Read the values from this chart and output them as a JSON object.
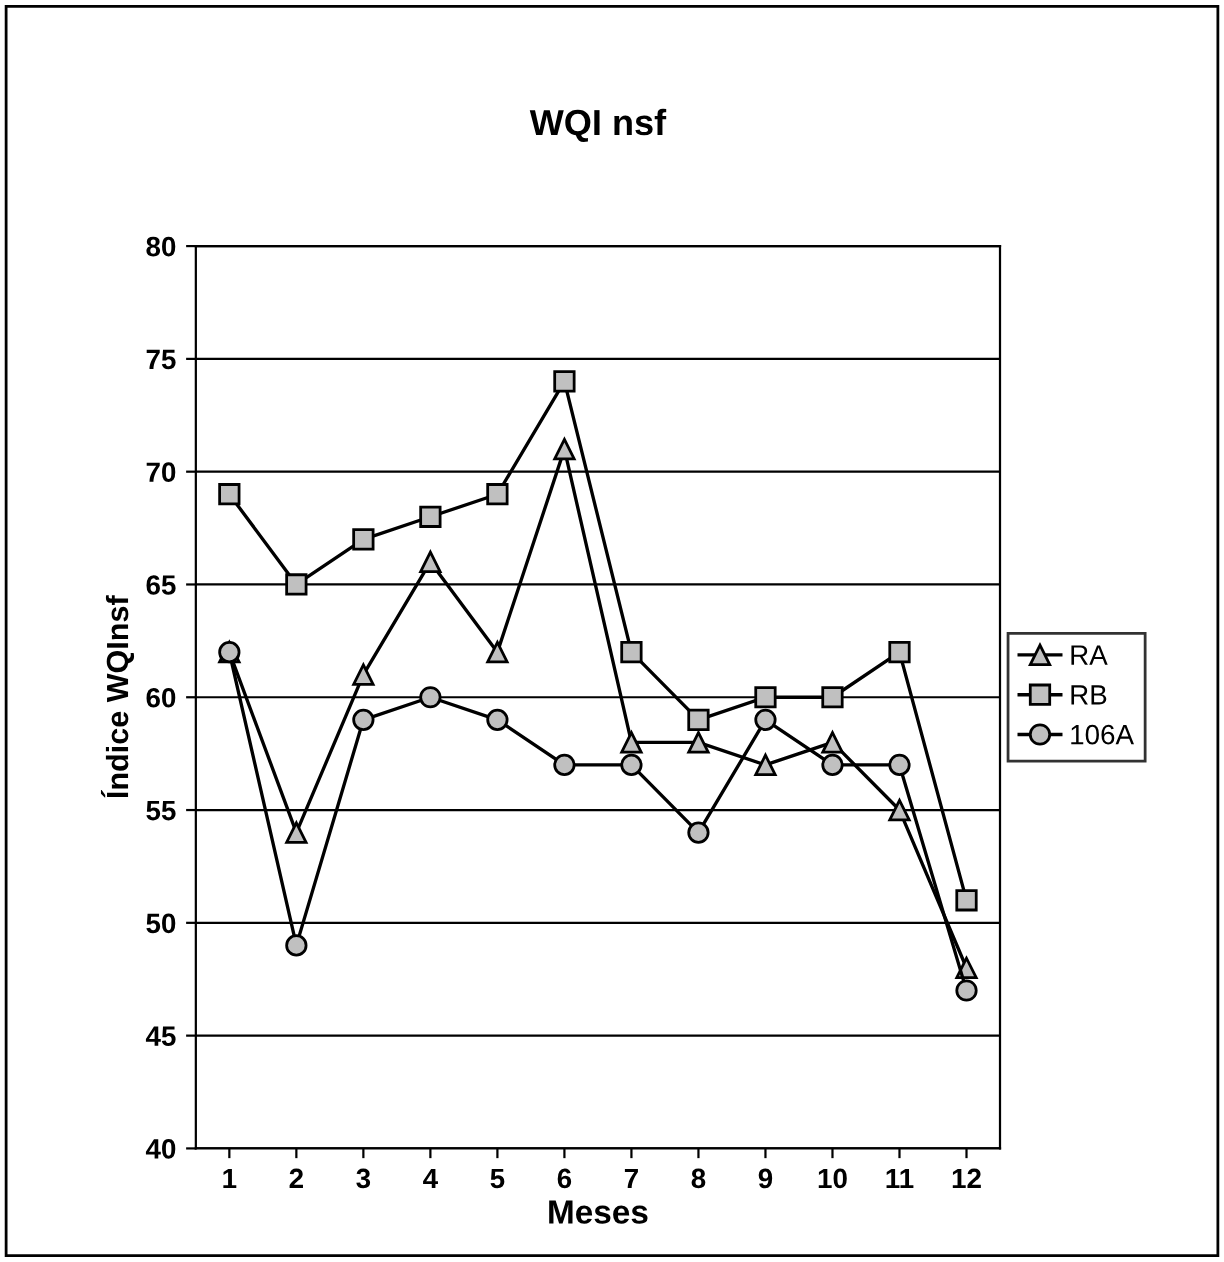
{
  "chart_data": {
    "type": "line",
    "title": "WQI nsf",
    "xlabel": "Meses",
    "ylabel": "Índice WQInsf",
    "categories": [
      "1",
      "2",
      "3",
      "4",
      "5",
      "6",
      "7",
      "8",
      "9",
      "10",
      "11",
      "12"
    ],
    "series": [
      {
        "name": "RA",
        "color": "#000000",
        "marker": "triangle",
        "values": [
          62,
          54,
          61,
          66,
          62,
          71,
          58,
          58,
          57,
          58,
          55,
          48
        ]
      },
      {
        "name": "RB",
        "color": "#000000",
        "marker": "square",
        "values": [
          69,
          65,
          67,
          68,
          69,
          74,
          62,
          59,
          60,
          60,
          62,
          51
        ]
      },
      {
        "name": "106A",
        "color": "#000000",
        "marker": "circle",
        "values": [
          62,
          49,
          59,
          60,
          59,
          57,
          57,
          54,
          59,
          57,
          57,
          47
        ]
      }
    ],
    "ylim": [
      40,
      80
    ],
    "yticks": [
      40,
      45,
      50,
      55,
      60,
      65,
      70,
      75,
      80
    ],
    "grid": "y",
    "legend": "right",
    "line_style": "solid"
  }
}
